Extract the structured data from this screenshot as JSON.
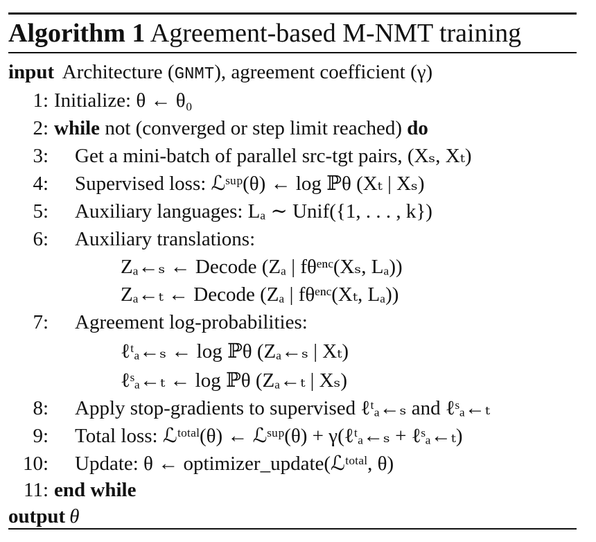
{
  "algorithm": {
    "label": "Algorithm 1",
    "title": "Agreement-based M-NMT training"
  },
  "input": {
    "keyword": "input",
    "text_prefix": "Architecture (",
    "arch": "GNMT",
    "text_suffix": "), agreement coefficient (γ)"
  },
  "steps": [
    {
      "num": "1:",
      "text": "Initialize: θ ← θ₀"
    },
    {
      "num": "2:",
      "kw1": "while",
      "text": " not (converged or step limit reached) ",
      "kw2": "do"
    },
    {
      "num": "3:",
      "text": "Get a mini-batch of parallel src-tgt pairs, (Xₛ, Xₜ)"
    },
    {
      "num": "4:",
      "text": "Supervised loss: ℒˢᵘᵖ(θ) ← log ℙθ (Xₜ | Xₛ)"
    },
    {
      "num": "5:",
      "text": "Auxiliary languages: Lₐ ∼ Unif({1, . . . , k})"
    },
    {
      "num": "6:",
      "text": "Auxiliary translations:"
    },
    {
      "num": "",
      "text": "Zₐ←ₛ ← Decode (Zₐ | fθᵉⁿᶜ(Xₛ, Lₐ))"
    },
    {
      "num": "",
      "text": "Zₐ←ₜ ← Decode (Zₐ | fθᵉⁿᶜ(Xₜ, Lₐ))"
    },
    {
      "num": "7:",
      "text": "Agreement log-probabilities:"
    },
    {
      "num": "",
      "text": "ℓᵗₐ←ₛ ← log ℙθ (Zₐ←ₛ | Xₜ)"
    },
    {
      "num": "",
      "text": "ℓˢₐ←ₜ ← log ℙθ (Zₐ←ₜ | Xₛ)"
    },
    {
      "num": "8:",
      "text": "Apply stop-gradients to supervised ℓᵗₐ←ₛ and ℓˢₐ←ₜ"
    },
    {
      "num": "9:",
      "text": "Total loss: ℒᵗᵒᵗᵃˡ(θ) ← ℒˢᵘᵖ(θ) + γ(ℓᵗₐ←ₛ + ℓˢₐ←ₜ)"
    },
    {
      "num": "10:",
      "text": "Update: θ ← optimizer_update(ℒᵗᵒᵗᵃˡ, θ)"
    },
    {
      "num": "11:",
      "kw1": "end while",
      "text": ""
    }
  ],
  "output": {
    "keyword": "output",
    "text": "θ"
  }
}
